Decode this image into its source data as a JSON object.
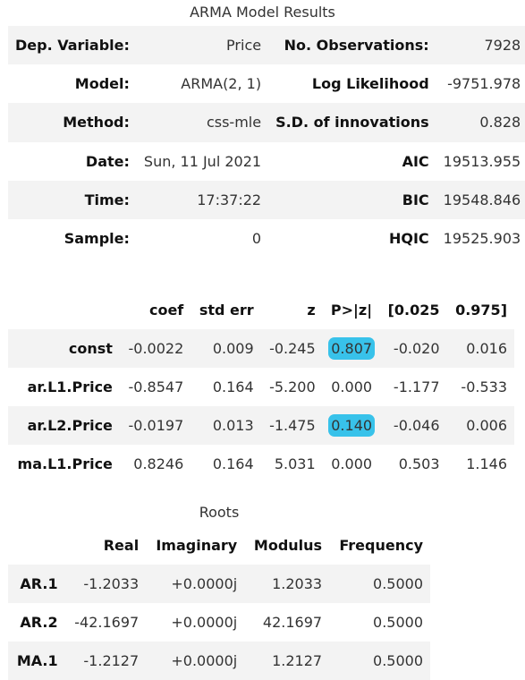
{
  "summary": {
    "caption": "ARMA Model Results",
    "rows": [
      {
        "l1": "Dep. Variable:",
        "v1": "Price",
        "l2": "No. Observations:",
        "v2": "7928"
      },
      {
        "l1": "Model:",
        "v1": "ARMA(2, 1)",
        "l2": "Log Likelihood",
        "v2": "-9751.978"
      },
      {
        "l1": "Method:",
        "v1": "css-mle",
        "l2": "S.D. of innovations",
        "v2": "0.828"
      },
      {
        "l1": "Date:",
        "v1": "Sun, 11 Jul 2021",
        "l2": "AIC",
        "v2": "19513.955"
      },
      {
        "l1": "Time:",
        "v1": "17:37:22",
        "l2": "BIC",
        "v2": "19548.846"
      },
      {
        "l1": "Sample:",
        "v1": "0",
        "l2": "HQIC",
        "v2": "19525.903"
      }
    ]
  },
  "coefficients": {
    "headers": [
      "",
      "coef",
      "std err",
      "z",
      "P>|z|",
      "[0.025",
      "0.975]"
    ],
    "rows": [
      {
        "name": "const",
        "values": [
          "-0.0022",
          "0.009",
          "-0.245",
          "0.807",
          "-0.020",
          "0.016"
        ],
        "highlight_p": true
      },
      {
        "name": "ar.L1.Price",
        "values": [
          "-0.8547",
          "0.164",
          "-5.200",
          "0.000",
          "-1.177",
          "-0.533"
        ],
        "highlight_p": false
      },
      {
        "name": "ar.L2.Price",
        "values": [
          "-0.0197",
          "0.013",
          "-1.475",
          "0.140",
          "-0.046",
          "0.006"
        ],
        "highlight_p": true
      },
      {
        "name": "ma.L1.Price",
        "values": [
          "0.8246",
          "0.164",
          "5.031",
          "0.000",
          "0.503",
          "1.146"
        ],
        "highlight_p": false
      }
    ],
    "highlight_color": "#38c2ea"
  },
  "roots": {
    "caption": "Roots",
    "headers": [
      "",
      "Real",
      "Imaginary",
      "Modulus",
      "Frequency"
    ],
    "rows": [
      {
        "name": "AR.1",
        "values": [
          "-1.2033",
          "+0.0000j",
          "1.2033",
          "0.5000"
        ]
      },
      {
        "name": "AR.2",
        "values": [
          "-42.1697",
          "+0.0000j",
          "42.1697",
          "0.5000"
        ]
      },
      {
        "name": "MA.1",
        "values": [
          "-1.2127",
          "+0.0000j",
          "1.2127",
          "0.5000"
        ]
      }
    ]
  }
}
